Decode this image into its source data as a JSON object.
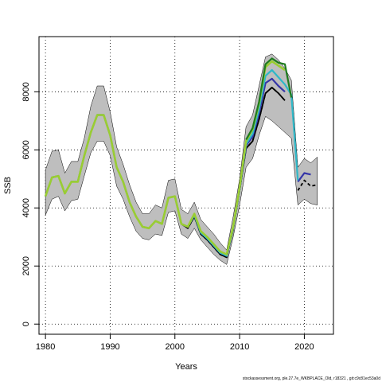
{
  "chart_data": {
    "type": "line",
    "title": "",
    "xlabel": "Years",
    "ylabel": "SSB",
    "xlim": [
      1979,
      2024.5
    ],
    "ylim": [
      -350,
      9900
    ],
    "x_ticks": [
      1980,
      1990,
      2000,
      2010,
      2020
    ],
    "y_ticks": [
      0,
      2000,
      4000,
      6000,
      8000
    ],
    "grid": true,
    "grid_style": "dotted",
    "band": {
      "color": "#bebebe",
      "x": [
        1980,
        1981,
        1982,
        1983,
        1984,
        1985,
        1986,
        1987,
        1988,
        1989,
        1990,
        1991,
        1992,
        1993,
        1994,
        1995,
        1996,
        1997,
        1998,
        1999,
        2000,
        2001,
        2002,
        2003,
        2004,
        2005,
        2006,
        2007,
        2008,
        2009,
        2010,
        2011,
        2012,
        2013,
        2014,
        2015,
        2016,
        2017,
        2018,
        2019,
        2020,
        2021,
        2022
      ],
      "upper": [
        5300,
        5950,
        6000,
        5200,
        5600,
        5600,
        6400,
        7500,
        8200,
        8200,
        7300,
        6100,
        5500,
        4800,
        4200,
        3800,
        3800,
        4100,
        4000,
        4950,
        5000,
        3950,
        3800,
        4200,
        3600,
        3350,
        3100,
        2800,
        2550,
        3700,
        5000,
        6800,
        7200,
        8200,
        9200,
        9300,
        9100,
        8800,
        8400,
        5400,
        5700,
        5550,
        5750
      ],
      "lower": [
        3750,
        4300,
        4400,
        3900,
        4250,
        4300,
        5100,
        5900,
        6300,
        6300,
        5800,
        4750,
        4300,
        3700,
        3200,
        2950,
        2900,
        3100,
        3050,
        3850,
        3900,
        3100,
        2950,
        3300,
        2900,
        2650,
        2400,
        2200,
        2050,
        3000,
        4100,
        5400,
        5700,
        6500,
        7150,
        7000,
        6800,
        6600,
        6400,
        4100,
        4300,
        4150,
        4100
      ]
    },
    "series": [
      {
        "color": "#000000",
        "lw": 1.8,
        "dash": "4,3",
        "x": [
          1980,
          1981,
          1982,
          1983,
          1984,
          1985,
          1986,
          1987,
          1988,
          1989,
          1990,
          1991,
          1992,
          1993,
          1994,
          1995,
          1996,
          1997,
          1998,
          1999,
          2000,
          2001,
          2002,
          2003,
          2004,
          2005,
          2006,
          2007,
          2008,
          2009,
          2010,
          2011,
          2012,
          2013,
          2014,
          2015,
          2016,
          2017,
          2018,
          2019,
          2020,
          2021,
          2022
        ],
        "values": [
          4400,
          5050,
          5100,
          4500,
          4900,
          4900,
          5800,
          6600,
          7200,
          7200,
          6500,
          5400,
          4900,
          4200,
          3700,
          3350,
          3300,
          3550,
          3450,
          4350,
          4400,
          3450,
          3300,
          3700,
          3100,
          2900,
          2650,
          2400,
          2300,
          3250,
          4600,
          6050,
          6300,
          7050,
          7950,
          8150,
          7950,
          7700,
          null,
          4600,
          4950,
          4750,
          4800
        ]
      },
      {
        "color": "#000000",
        "lw": 1.8,
        "x": [
          1980,
          1981,
          1982,
          1983,
          1984,
          1985,
          1986,
          1987,
          1988,
          1989,
          1990,
          1991,
          1992,
          1993,
          1994,
          1995,
          1996,
          1997,
          1998,
          1999,
          2000,
          2001,
          2002,
          2003,
          2004,
          2005,
          2006,
          2007,
          2008,
          2009,
          2010,
          2011,
          2012,
          2013,
          2014,
          2015,
          2016,
          2017
        ],
        "values": [
          4400,
          5050,
          5100,
          4500,
          4900,
          4900,
          5800,
          6600,
          7200,
          7200,
          6500,
          5400,
          4900,
          4200,
          3700,
          3350,
          3300,
          3550,
          3450,
          4350,
          4400,
          3450,
          3300,
          3700,
          3100,
          2900,
          2650,
          2400,
          2300,
          3250,
          4600,
          6050,
          6300,
          7050,
          7950,
          8150,
          7950,
          7700
        ]
      },
      {
        "color": "#3636a8",
        "lw": 2.2,
        "x": [
          1980,
          1981,
          1982,
          1983,
          1984,
          1985,
          1986,
          1987,
          1988,
          1989,
          1990,
          1991,
          1992,
          1993,
          1994,
          1995,
          1996,
          1997,
          1998,
          1999,
          2000,
          2001,
          2002,
          2003,
          2004,
          2005,
          2006,
          2007,
          2008,
          2009,
          2010,
          2011,
          2012,
          2013,
          2014,
          2015,
          2016,
          2017,
          2018,
          2019,
          2020,
          2021
        ],
        "values": [
          4400,
          5050,
          5100,
          4500,
          4900,
          4900,
          5800,
          6600,
          7200,
          7200,
          6500,
          5400,
          4900,
          4200,
          3700,
          3350,
          3300,
          3550,
          3450,
          4350,
          4400,
          3450,
          3350,
          3750,
          3150,
          2950,
          2700,
          2450,
          2350,
          3300,
          4650,
          6150,
          6450,
          7250,
          8300,
          8450,
          8200,
          8000,
          null,
          4900,
          5200,
          5150
        ]
      },
      {
        "color": "#2fb8c8",
        "lw": 2.2,
        "x": [
          1980,
          1981,
          1982,
          1983,
          1984,
          1985,
          1986,
          1987,
          1988,
          1989,
          1990,
          1991,
          1992,
          1993,
          1994,
          1995,
          1996,
          1997,
          1998,
          1999,
          2000,
          2001,
          2002,
          2003,
          2004,
          2005,
          2006,
          2007,
          2008,
          2009,
          2010,
          2011,
          2012,
          2013,
          2014,
          2015,
          2016,
          2017,
          2018,
          2019
        ],
        "values": [
          4400,
          5050,
          5100,
          4500,
          4900,
          4900,
          5800,
          6600,
          7200,
          7200,
          6500,
          5400,
          4900,
          4200,
          3700,
          3350,
          3300,
          3550,
          3450,
          4350,
          4400,
          3450,
          3350,
          3750,
          3150,
          2950,
          2700,
          2450,
          2350,
          3300,
          4650,
          6200,
          6550,
          7400,
          8550,
          8750,
          8500,
          8250,
          7900,
          4950
        ]
      },
      {
        "color": "#9acd32",
        "lw": 2.6,
        "x": [
          1980,
          1981,
          1982,
          1983,
          1984,
          1985,
          1986,
          1987,
          1988,
          1989,
          1990,
          1991,
          1992,
          1993,
          1994,
          1995,
          1996,
          1997,
          1998,
          1999,
          2000,
          2001,
          2002,
          2003,
          2004,
          2005,
          2006,
          2007,
          2008,
          2009,
          2010,
          2011,
          2012,
          2013,
          2014,
          2015,
          2016,
          2017
        ],
        "values": [
          4400,
          5050,
          5100,
          4500,
          4900,
          4900,
          5800,
          6600,
          7200,
          7200,
          6500,
          5400,
          4900,
          4200,
          3700,
          3350,
          3300,
          3550,
          3450,
          4350,
          4400,
          3450,
          3350,
          3800,
          3200,
          3000,
          2750,
          2500,
          2400,
          3350,
          4700,
          6300,
          6700,
          7600,
          8850,
          9050,
          8900,
          8750
        ]
      },
      {
        "color": "#1e7b1e",
        "lw": 2.2,
        "x": [
          2011,
          2012,
          2013,
          2014,
          2015,
          2016,
          2017,
          2018
        ],
        "values": [
          6350,
          6750,
          7650,
          8950,
          9150,
          9000,
          8950,
          7800
        ]
      }
    ]
  },
  "footer": {
    "source": "stockassessment.org, ple.27.7e_WKBPLACE_Old, r18321 , git:c9c81ec53a0d"
  }
}
